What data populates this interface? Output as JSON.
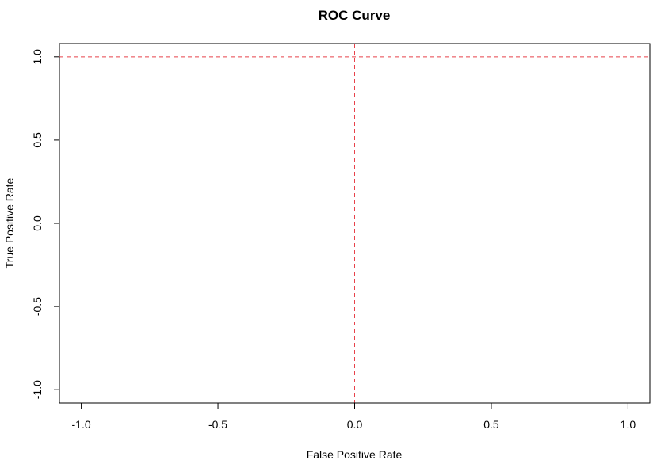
{
  "chart_data": {
    "type": "line",
    "title": "ROC Curve",
    "xlabel": "False Positive Rate",
    "ylabel": "True Positive Rate",
    "xlim": [
      -1.08,
      1.08
    ],
    "ylim": [
      -1.08,
      1.08
    ],
    "x_ticks": [
      -1.0,
      -0.5,
      0.0,
      0.5,
      1.0
    ],
    "x_tick_labels": [
      "-1.0",
      "-0.5",
      "0.0",
      "0.5",
      "1.0"
    ],
    "y_ticks": [
      -1.0,
      -0.5,
      0.0,
      0.5,
      1.0
    ],
    "y_tick_labels": [
      "-1.0",
      "-0.5",
      "0.0",
      "0.5",
      "1.0"
    ],
    "grid": false,
    "series": [],
    "reference_lines": [
      {
        "orientation": "horizontal",
        "value": 1.0,
        "style": "dashed",
        "color": "#e8414a"
      },
      {
        "orientation": "vertical",
        "value": 0.0,
        "style": "dashed",
        "color": "#e8414a"
      }
    ]
  }
}
